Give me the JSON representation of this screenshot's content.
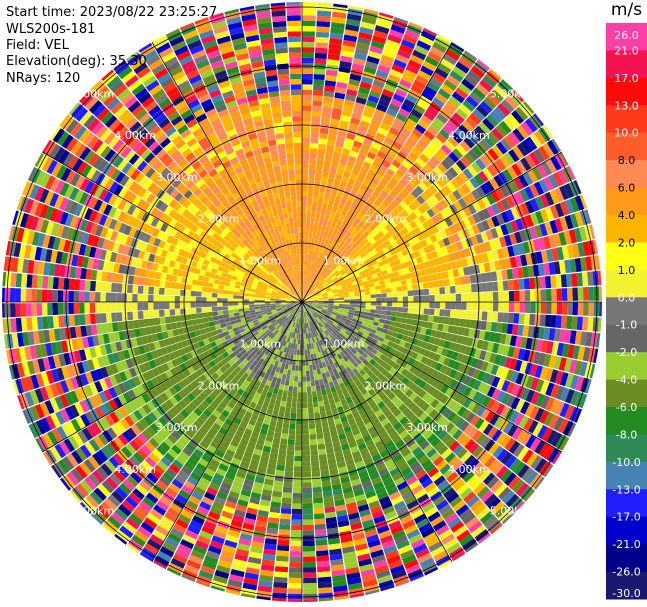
{
  "header": {
    "start_time": "Start time: 2023/08/22 23:25:27",
    "instrument": "WLS200s-181",
    "field": "Field: VEL",
    "elevation": "Elevation(deg): 35.30",
    "nrays": "NRays: 120"
  },
  "colorbar": {
    "unit": "m/s",
    "ticks": [
      "26.0",
      "21.0",
      "17.0",
      "13.0",
      "10.0",
      "8.0",
      "6.0",
      "4.0",
      "2.0",
      "1.0",
      "0.0",
      "-1.0",
      "-2.0",
      "-4.0",
      "-6.0",
      "-8.0",
      "-10.0",
      "-13.0",
      "-17.0",
      "-21.0",
      "-26.0",
      "-30.0"
    ],
    "colors": [
      "#ff3fa6",
      "#f1124f",
      "#ff0a0a",
      "#ff3a1a",
      "#ff5c2e",
      "#ff8a55",
      "#ff9a1a",
      "#ffb400",
      "#ffff14",
      "#f2f230",
      "#777777",
      "#666666",
      "#9acd32",
      "#6b8e23",
      "#228b22",
      "#2e8b57",
      "#4682b4",
      "#1e1eff",
      "#0000cd",
      "#00008b",
      "#191970"
    ]
  },
  "rings": {
    "labels": [
      "1.00km",
      "2.00km",
      "3.00km",
      "4.00km",
      "5.00km"
    ]
  },
  "chart_data": {
    "type": "heatmap",
    "title": "",
    "field": "VEL",
    "unit": "m/s",
    "projection": "PPI (polar, north up)",
    "n_rays": 120,
    "elevation_deg": 35.3,
    "range_rings_km": [
      1,
      2,
      3,
      4,
      5
    ],
    "spoke_interval_deg": 30,
    "colorbar_ticks": [
      26.0,
      21.0,
      17.0,
      13.0,
      10.0,
      8.0,
      6.0,
      4.0,
      2.0,
      1.0,
      0.0,
      -1.0,
      -2.0,
      -4.0,
      -6.0,
      -8.0,
      -10.0,
      -13.0,
      -17.0,
      -21.0,
      -26.0,
      -30.0
    ],
    "vmin": -30.0,
    "vmax": 30.0,
    "pattern_zones": [
      {
        "region": "north sector, 0-2.5 km",
        "velocity_ms": 5.0
      },
      {
        "region": "northeast and northwest, 0-2.5 km",
        "velocity_ms": 2.5
      },
      {
        "region": "east-west belt near center",
        "velocity_ms": 0.0
      },
      {
        "region": "southern half, 0-1.5 km",
        "velocity_ms": -1.5
      },
      {
        "region": "southern half, 1.5-3.5 km",
        "velocity_ms": -5.0
      },
      {
        "region": "outer ring beyond 3.5 km",
        "velocity_ms": "noise"
      }
    ]
  }
}
